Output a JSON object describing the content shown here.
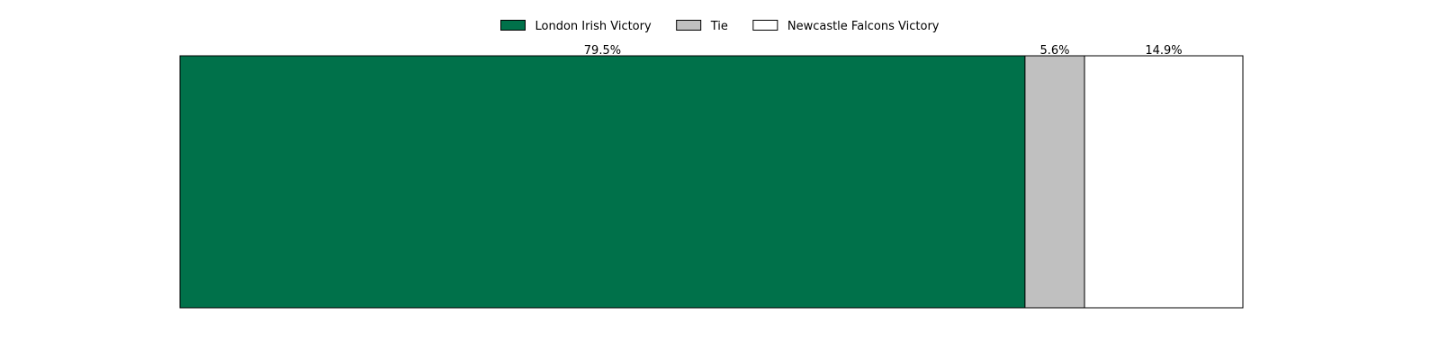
{
  "chart_data": {
    "type": "bar",
    "orientation": "horizontal",
    "stacked": true,
    "normalized_percent": true,
    "xlim": [
      0,
      100
    ],
    "grid": false,
    "axes_visible": false,
    "legend_placement": "top-center",
    "series": [
      {
        "name": "London Irish Victory",
        "value": 79.5,
        "label": "79.5%",
        "color": "#00714a"
      },
      {
        "name": "Tie",
        "value": 5.6,
        "label": "5.6%",
        "color": "#c0c0c0"
      },
      {
        "name": "Newcastle Falcons Victory",
        "value": 14.9,
        "label": "14.9%",
        "color": "#ffffff"
      }
    ]
  }
}
